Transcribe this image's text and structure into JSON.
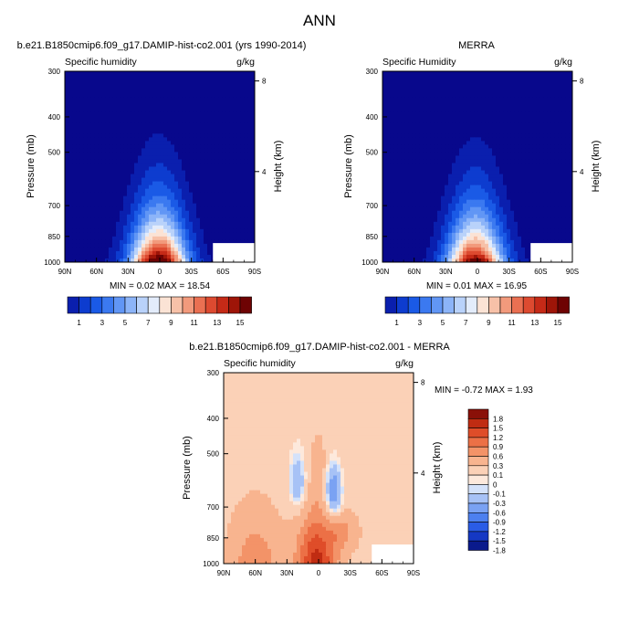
{
  "figure_title": "ANN",
  "colors": {
    "humidity_scale": [
      "#08088c",
      "#0a1fae",
      "#0d3ccf",
      "#1a5ae6",
      "#3b79f0",
      "#6196f5",
      "#8cb4f8",
      "#b9d2fa",
      "#e3ecfb",
      "#fbe3d5",
      "#f7c1a8",
      "#f29a7c",
      "#ea7052",
      "#dd4a30",
      "#c52a17",
      "#9e1508",
      "#6e0303"
    ],
    "diff_scale": [
      "#0a1a8c",
      "#1538c4",
      "#2a5ce6",
      "#4d80ef",
      "#7aa2f3",
      "#a7c2f6",
      "#d4e2fa",
      "#fde9dc",
      "#fbd1b7",
      "#f8b48f",
      "#f39368",
      "#ec7046",
      "#df4d29",
      "#c02c12",
      "#8a1008"
    ]
  },
  "chart_data": [
    {
      "type": "contour",
      "name": "model",
      "title": "b.e21.B1850cmip6.f09_g17.DAMIP-hist-co2.001 (yrs 1990-2014)",
      "left_label": "Specific humidity",
      "right_label": "g/kg",
      "ylabel": "Pressure (mb)",
      "ylabel_right": "Height (km)",
      "y_ticks": [
        "300",
        "400",
        "500",
        "700",
        "850",
        "1000"
      ],
      "x_ticks": [
        "90N",
        "60N",
        "30N",
        "0",
        "30S",
        "60S",
        "90S"
      ],
      "height_ticks": [
        "8",
        "4"
      ],
      "min_label": "MIN = ",
      "min": "0.02",
      "max_label": "MAX = ",
      "max": "18.54",
      "colorbar_labels": [
        "1",
        "3",
        "5",
        "7",
        "9",
        "11",
        "13",
        "15"
      ],
      "levels": [
        1,
        2,
        3,
        4,
        5,
        6,
        7,
        8,
        9,
        10,
        11,
        12,
        13,
        14,
        15,
        16
      ]
    },
    {
      "type": "contour",
      "name": "obs",
      "title": "MERRA",
      "left_label": "Specific Humidity",
      "right_label": "g/kg",
      "ylabel": "Pressure (mb)",
      "ylabel_right": "Height (km)",
      "y_ticks": [
        "300",
        "400",
        "500",
        "700",
        "850",
        "1000"
      ],
      "x_ticks": [
        "90N",
        "60N",
        "30N",
        "0",
        "30S",
        "60S",
        "90S"
      ],
      "height_ticks": [
        "8",
        "4"
      ],
      "min_label": "MIN = ",
      "min": "0.01",
      "max_label": "MAX = ",
      "max": "16.95",
      "colorbar_labels": [
        "1",
        "3",
        "5",
        "7",
        "9",
        "11",
        "13",
        "15"
      ],
      "levels": [
        1,
        2,
        3,
        4,
        5,
        6,
        7,
        8,
        9,
        10,
        11,
        12,
        13,
        14,
        15,
        16
      ]
    },
    {
      "type": "contour",
      "name": "difference",
      "title": "b.e21.B1850cmip6.f09_g17.DAMIP-hist-co2.001 - MERRA",
      "left_label": "Specific humidity",
      "right_label": "g/kg",
      "ylabel": "Pressure (mb)",
      "ylabel_right": "Height (km)",
      "y_ticks": [
        "300",
        "400",
        "500",
        "700",
        "850",
        "1000"
      ],
      "x_ticks": [
        "90N",
        "60N",
        "30N",
        "0",
        "30S",
        "60S",
        "90S"
      ],
      "height_ticks": [
        "8",
        "4"
      ],
      "min_label": "MIN = ",
      "min": "-0.72",
      "max_label": "MAX = ",
      "max": "1.93",
      "colorbar_labels": [
        "1.8",
        "1.5",
        "1.2",
        "0.9",
        "0.6",
        "0.3",
        "0.1",
        "0",
        "-0.1",
        "-0.3",
        "-0.6",
        "-0.9",
        "-1.2",
        "-1.5",
        "-1.8"
      ]
    }
  ]
}
